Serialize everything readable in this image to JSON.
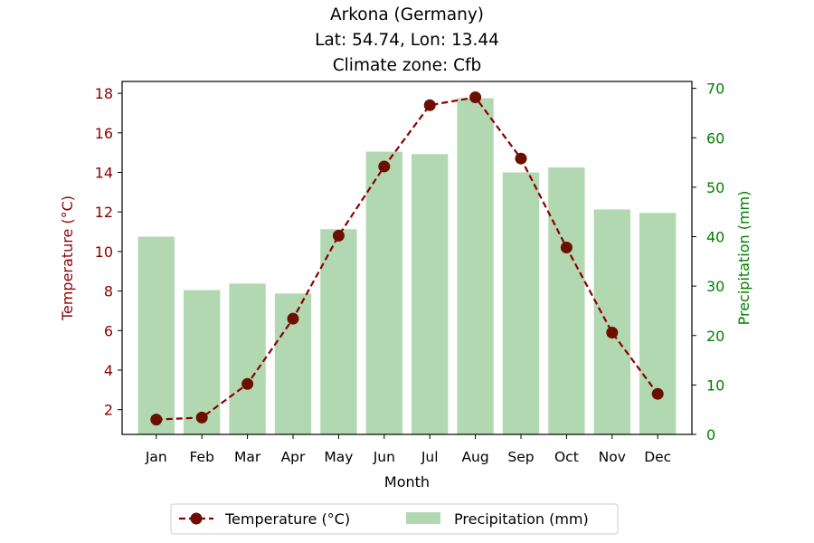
{
  "chart_data": {
    "type": "bar+line",
    "title_lines": [
      "Arkona (Germany)",
      "Lat: 54.74, Lon: 13.44",
      "Climate zone: Cfb"
    ],
    "xlabel": "Month",
    "ylabel_left": "Temperature (°C)",
    "ylabel_right": "Precipitation (mm)",
    "categories": [
      "Jan",
      "Feb",
      "Mar",
      "Apr",
      "May",
      "Jun",
      "Jul",
      "Aug",
      "Sep",
      "Oct",
      "Nov",
      "Dec"
    ],
    "temperature": {
      "name": "Temperature (°C)",
      "values": [
        1.5,
        1.6,
        3.3,
        6.6,
        10.8,
        14.3,
        17.4,
        17.8,
        14.7,
        10.2,
        5.9,
        2.8
      ],
      "color": "#8b0000"
    },
    "precipitation": {
      "name": "Precipitation (mm)",
      "values": [
        40.0,
        29.2,
        30.5,
        28.5,
        41.5,
        57.2,
        56.7,
        68.0,
        53.0,
        54.0,
        45.5,
        44.8
      ],
      "color": "#b2d8b2"
    },
    "ylim_left": [
      0.75,
      18.6
    ],
    "yticks_left": [
      2,
      4,
      6,
      8,
      10,
      12,
      14,
      16,
      18
    ],
    "ylim_right": [
      0,
      71.4
    ],
    "yticks_right": [
      0,
      10,
      20,
      30,
      40,
      50,
      60,
      70
    ],
    "left_axis_color": "#8b0000",
    "right_axis_color": "#008000",
    "grid": false,
    "legend_position": "bottom-center"
  }
}
